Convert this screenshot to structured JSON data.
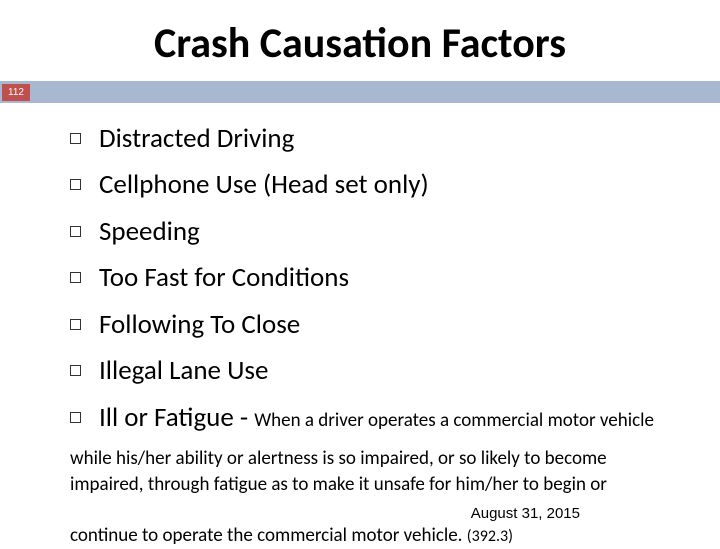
{
  "title": "Crash Causation Factors",
  "badge": "112",
  "colors": {
    "bar_bg": "#a8b8d0",
    "badge_bg": "#c0504d",
    "badge_fg": "#ffffff",
    "page_bg": "#ffffff",
    "text": "#000000"
  },
  "typography": {
    "title_fontsize": 42,
    "item_fontsize": 27,
    "sub_fontsize": 19,
    "note_fontsize": 19,
    "date_fontsize": 15
  },
  "items": [
    "Distracted Driving",
    "Cellphone Use (Head set only)",
    "Speeding",
    "Too Fast for Conditions",
    "Following To Close",
    "Illegal Lane Use"
  ],
  "last_item_main": "Ill or Fatigue",
  "last_item_sep": "  -  ",
  "last_item_sub": "When a driver operates a commercial motor vehicle",
  "note_line1": "while his/her ability or alertness is so impaired, or so likely to become",
  "note_line2": "impaired, through fatigue as to make it unsafe for him/her to begin or",
  "note_line3_a": "continue to operate the commercial motor vehicle. ",
  "note_line3_b": "(392.3)",
  "date": "August 31, 2015"
}
